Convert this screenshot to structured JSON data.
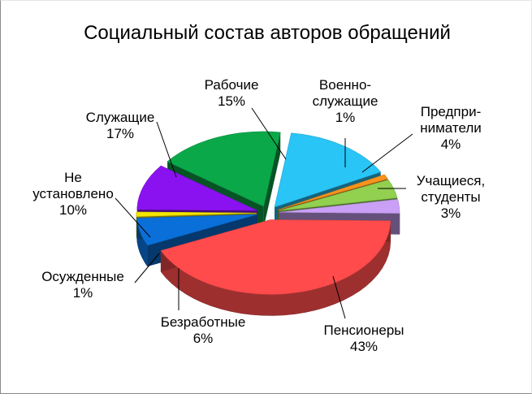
{
  "chart_data": {
    "type": "pie",
    "title": "Социальный состав авторов обращений",
    "slices": [
      {
        "label_lines": [
          "Рабочие"
        ],
        "pct_label": "15%",
        "value": 15,
        "color": "#29C5F6"
      },
      {
        "label_lines": [
          "Военно-",
          "служащие"
        ],
        "pct_label": "1%",
        "value": 1,
        "color": "#F7941D"
      },
      {
        "label_lines": [
          "Предпри-",
          "ниматели"
        ],
        "pct_label": "4%",
        "value": 4,
        "color": "#92D050"
      },
      {
        "label_lines": [
          "Учащиеся,",
          "студенты"
        ],
        "pct_label": "3%",
        "value": 3,
        "color": "#C9A0F5"
      },
      {
        "label_lines": [
          "Пенсионеры"
        ],
        "pct_label": "43%",
        "value": 43,
        "color": "#FF4B4B"
      },
      {
        "label_lines": [
          "Безработные"
        ],
        "pct_label": "6%",
        "value": 6,
        "color": "#0A6FD8"
      },
      {
        "label_lines": [
          "Осужденные"
        ],
        "pct_label": "1%",
        "value": 1,
        "color": "#F5E600"
      },
      {
        "label_lines": [
          "Не",
          "установлено"
        ],
        "pct_label": "10%",
        "value": 10,
        "color": "#8B12F0"
      },
      {
        "label_lines": [
          "Служащие"
        ],
        "pct_label": "17%",
        "value": 17,
        "color": "#0BA84A"
      }
    ]
  }
}
